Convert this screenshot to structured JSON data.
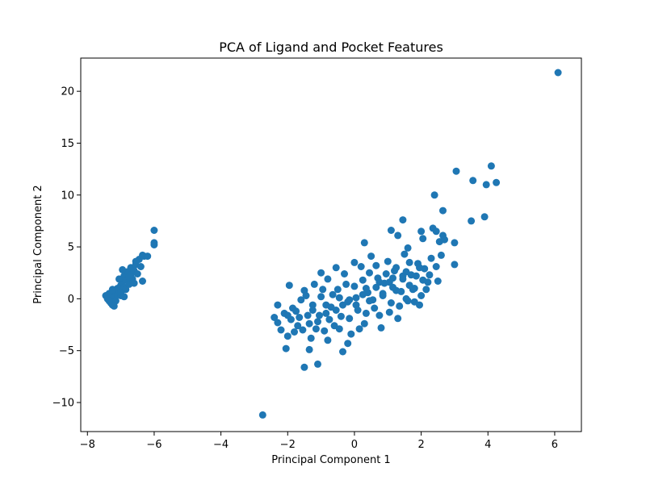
{
  "chart_data": {
    "type": "scatter",
    "title": "PCA of Ligand and Pocket Features",
    "xlabel": "Principal Component 1",
    "ylabel": "Principal Component 2",
    "xlim": [
      -8.2,
      6.8
    ],
    "ylim": [
      -12.8,
      23.2
    ],
    "xticks": [
      -8,
      -6,
      -4,
      -2,
      0,
      2,
      4,
      6
    ],
    "xtick_labels": [
      "−8",
      "−6",
      "−4",
      "−2",
      "0",
      "2",
      "4",
      "6"
    ],
    "yticks": [
      -10,
      -5,
      0,
      5,
      10,
      15,
      20
    ],
    "ytick_labels": [
      "−10",
      "−5",
      "0",
      "5",
      "10",
      "15",
      "20"
    ],
    "grid": false,
    "marker_color": "#1f77b4",
    "series": [
      {
        "points": [
          [
            -7.45,
            0.3
          ],
          [
            -7.4,
            0.0
          ],
          [
            -7.35,
            0.5
          ],
          [
            -7.3,
            -0.4
          ],
          [
            -7.3,
            0.2
          ],
          [
            -7.25,
            -0.6
          ],
          [
            -7.2,
            0.7
          ],
          [
            -7.2,
            0.1
          ],
          [
            -7.15,
            -0.2
          ],
          [
            -7.1,
            1.0
          ],
          [
            -7.1,
            0.4
          ],
          [
            -7.05,
            0.8
          ],
          [
            -7.0,
            1.3
          ],
          [
            -7.0,
            0.3
          ],
          [
            -6.95,
            1.6
          ],
          [
            -6.9,
            1.1
          ],
          [
            -6.9,
            2.2
          ],
          [
            -6.85,
            0.9
          ],
          [
            -6.8,
            1.8
          ],
          [
            -6.8,
            2.6
          ],
          [
            -6.75,
            1.4
          ],
          [
            -6.7,
            2.3
          ],
          [
            -6.7,
            3.0
          ],
          [
            -6.65,
            1.9
          ],
          [
            -6.6,
            2.7
          ],
          [
            -6.55,
            3.3
          ],
          [
            -6.5,
            2.4
          ],
          [
            -6.45,
            3.8
          ],
          [
            -6.4,
            3.1
          ],
          [
            -6.35,
            4.2
          ],
          [
            -6.35,
            1.7
          ],
          [
            -6.3,
            4.1
          ],
          [
            -6.2,
            4.1
          ],
          [
            -6.0,
            5.2
          ],
          [
            -6.0,
            5.4
          ],
          [
            -6.0,
            6.6
          ],
          [
            -7.2,
            -0.7
          ],
          [
            -7.0,
            0.6
          ],
          [
            -6.9,
            0.2
          ],
          [
            -6.6,
            1.5
          ],
          [
            -7.25,
            0.9
          ],
          [
            -6.95,
            2.8
          ],
          [
            -6.75,
            2.1
          ],
          [
            -7.05,
            1.9
          ],
          [
            -6.55,
            3.6
          ],
          [
            -7.35,
            -0.2
          ]
        ]
      },
      {
        "points": [
          [
            6.1,
            21.8
          ],
          [
            -2.75,
            -11.2
          ],
          [
            4.1,
            12.8
          ],
          [
            3.05,
            12.3
          ],
          [
            3.55,
            11.4
          ],
          [
            3.95,
            11.0
          ],
          [
            4.25,
            11.2
          ],
          [
            2.4,
            10.0
          ],
          [
            2.65,
            8.5
          ],
          [
            3.9,
            7.9
          ],
          [
            3.5,
            7.5
          ],
          [
            1.45,
            7.6
          ],
          [
            2.35,
            6.8
          ],
          [
            1.1,
            6.6
          ],
          [
            2.45,
            6.5
          ],
          [
            2.65,
            6.1
          ],
          [
            1.3,
            6.1
          ],
          [
            2.0,
            6.5
          ],
          [
            2.05,
            5.8
          ],
          [
            3.0,
            5.4
          ],
          [
            2.55,
            5.5
          ],
          [
            0.3,
            5.4
          ],
          [
            2.7,
            5.7
          ],
          [
            -1.5,
            -6.6
          ],
          [
            -1.1,
            -6.3
          ],
          [
            -2.05,
            -4.8
          ],
          [
            -1.35,
            -4.9
          ],
          [
            -0.35,
            -5.1
          ],
          [
            -2.3,
            -0.6
          ],
          [
            -1.95,
            1.3
          ],
          [
            -1.0,
            2.5
          ],
          [
            -0.55,
            3.0
          ],
          [
            0.0,
            3.5
          ],
          [
            -0.2,
            -4.3
          ],
          [
            -0.8,
            -4.0
          ],
          [
            2.5,
            1.7
          ],
          [
            3.0,
            3.3
          ],
          [
            2.6,
            4.2
          ],
          [
            1.8,
            -0.3
          ],
          [
            1.6,
            4.9
          ],
          [
            -2.4,
            -1.8
          ],
          [
            -2.3,
            -2.3
          ],
          [
            -2.2,
            -3.0
          ],
          [
            -2.0,
            -3.6
          ],
          [
            -1.8,
            -3.2
          ],
          [
            -2.1,
            -1.4
          ],
          [
            -1.85,
            -0.9
          ],
          [
            -1.7,
            -2.6
          ],
          [
            -1.6,
            -0.1
          ],
          [
            -1.5,
            0.8
          ],
          [
            -1.4,
            -1.6
          ],
          [
            -1.3,
            -3.8
          ],
          [
            -1.2,
            1.4
          ],
          [
            -1.1,
            -2.2
          ],
          [
            -1.0,
            0.2
          ],
          [
            -0.9,
            -3.1
          ],
          [
            -0.8,
            1.9
          ],
          [
            -0.7,
            -0.8
          ],
          [
            -0.6,
            -2.6
          ],
          [
            -0.5,
            0.9
          ],
          [
            -0.4,
            -1.7
          ],
          [
            -0.3,
            2.4
          ],
          [
            -0.2,
            -0.3
          ],
          [
            -0.1,
            -3.4
          ],
          [
            0.0,
            1.2
          ],
          [
            0.1,
            -1.1
          ],
          [
            0.2,
            3.1
          ],
          [
            0.3,
            -2.4
          ],
          [
            0.4,
            0.6
          ],
          [
            0.5,
            4.1
          ],
          [
            0.6,
            -0.9
          ],
          [
            0.7,
            2.0
          ],
          [
            0.8,
            -2.8
          ],
          [
            0.9,
            1.5
          ],
          [
            1.0,
            3.6
          ],
          [
            1.1,
            -0.4
          ],
          [
            1.2,
            2.7
          ],
          [
            1.3,
            -1.9
          ],
          [
            1.4,
            0.7
          ],
          [
            1.5,
            4.3
          ],
          [
            1.6,
            -0.2
          ],
          [
            1.7,
            2.3
          ],
          [
            1.8,
            1.0
          ],
          [
            1.9,
            3.4
          ],
          [
            2.0,
            0.3
          ],
          [
            2.1,
            2.9
          ],
          [
            2.2,
            1.6
          ],
          [
            2.3,
            3.9
          ],
          [
            -1.9,
            -2.0
          ],
          [
            -1.75,
            -1.2
          ],
          [
            -1.55,
            -3.0
          ],
          [
            -1.45,
            0.3
          ],
          [
            -1.25,
            -0.6
          ],
          [
            -1.15,
            -2.9
          ],
          [
            -0.95,
            0.9
          ],
          [
            -0.85,
            -1.4
          ],
          [
            -0.65,
            0.4
          ],
          [
            -0.45,
            -2.9
          ],
          [
            -0.25,
            1.4
          ],
          [
            -0.15,
            -1.9
          ],
          [
            0.05,
            0.1
          ],
          [
            0.15,
            -2.9
          ],
          [
            0.25,
            1.8
          ],
          [
            0.35,
            -1.4
          ],
          [
            0.45,
            2.5
          ],
          [
            0.55,
            -0.1
          ],
          [
            0.65,
            3.2
          ],
          [
            0.75,
            -1.6
          ],
          [
            0.85,
            0.5
          ],
          [
            0.95,
            2.4
          ],
          [
            1.05,
            -1.3
          ],
          [
            1.15,
            1.1
          ],
          [
            1.25,
            3.0
          ],
          [
            1.35,
            -0.7
          ],
          [
            1.45,
            1.9
          ],
          [
            1.55,
            0.0
          ],
          [
            1.65,
            3.5
          ],
          [
            1.75,
            0.9
          ],
          [
            1.85,
            2.2
          ],
          [
            1.95,
            -0.6
          ],
          [
            2.15,
            0.9
          ],
          [
            2.25,
            2.3
          ],
          [
            2.45,
            3.1
          ],
          [
            -2.0,
            -1.6
          ],
          [
            -1.65,
            -1.8
          ],
          [
            -1.35,
            -2.4
          ],
          [
            -1.05,
            -1.6
          ],
          [
            -0.75,
            -2.0
          ],
          [
            -0.35,
            -0.6
          ],
          [
            0.05,
            -0.6
          ],
          [
            0.45,
            -0.2
          ],
          [
            0.85,
            0.3
          ],
          [
            1.25,
            0.8
          ],
          [
            1.65,
            1.3
          ],
          [
            2.05,
            1.8
          ],
          [
            -0.55,
            -1.1
          ],
          [
            -0.15,
            -0.1
          ],
          [
            0.25,
            0.4
          ],
          [
            0.65,
            1.1
          ],
          [
            1.05,
            1.6
          ],
          [
            1.45,
            2.2
          ],
          [
            -1.25,
            -1.1
          ],
          [
            -0.85,
            -0.6
          ],
          [
            -0.45,
            0.1
          ],
          [
            0.35,
            1.0
          ],
          [
            0.75,
            1.6
          ],
          [
            1.15,
            2.0
          ],
          [
            1.55,
            2.6
          ],
          [
            1.95,
            3.0
          ]
        ]
      }
    ]
  }
}
